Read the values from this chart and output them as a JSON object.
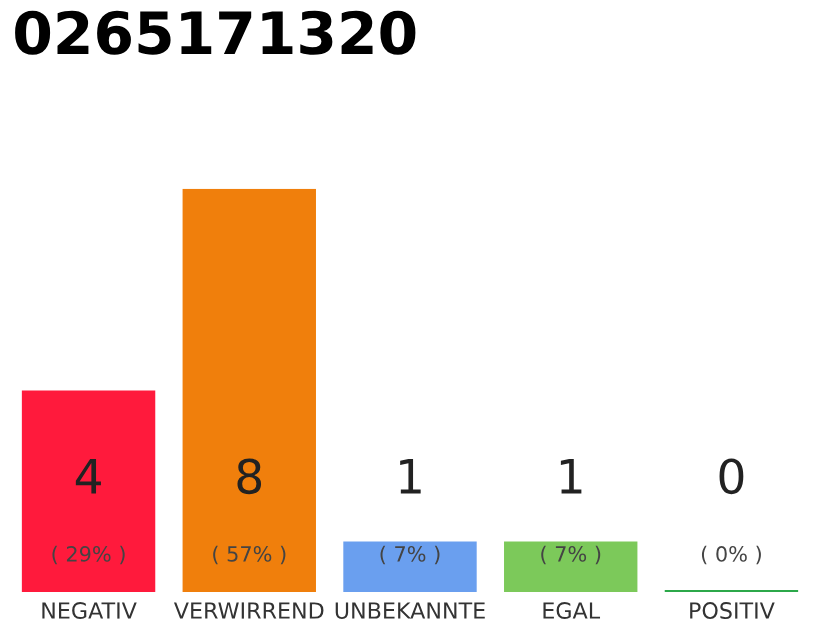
{
  "chart_data": {
    "type": "bar",
    "title": "0265171320",
    "categories": [
      "NEGATIV",
      "VERWIRREND",
      "UNBEKANNTE",
      "EGAL",
      "POSITIV"
    ],
    "values": [
      4,
      8,
      1,
      1,
      0
    ],
    "colors": [
      "#ff1a3c",
      "#f07f0c",
      "#6a9fef",
      "#7cc95a",
      "#2ca84a"
    ],
    "data_labels": true,
    "annotations": [
      "( 29% )",
      "( 57% )",
      "( 7% )",
      "( 7% )",
      "( 0% )"
    ],
    "tick_labels": "x"
  }
}
